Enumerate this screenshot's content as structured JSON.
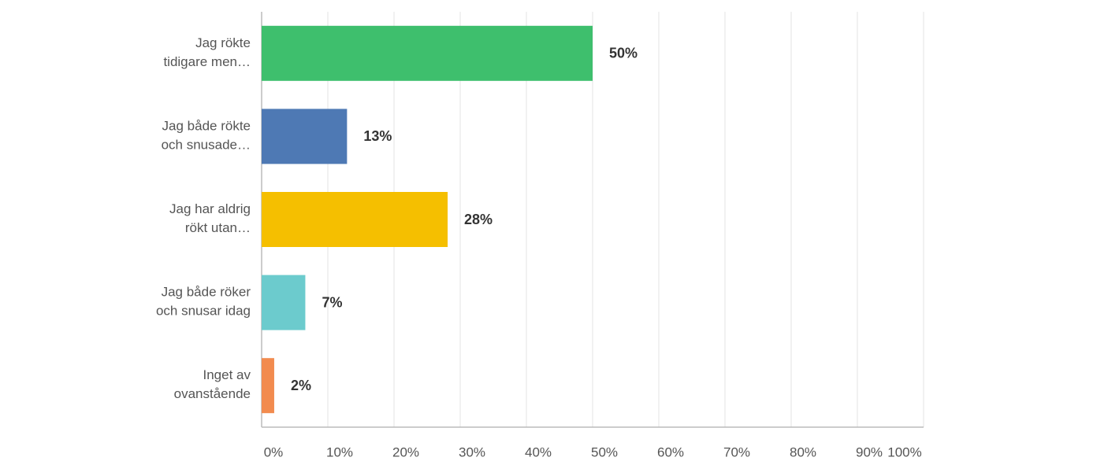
{
  "chart_data": {
    "type": "bar",
    "orientation": "horizontal",
    "categories": [
      [
        "Jag rökte",
        "tidigare men…"
      ],
      [
        "Jag både rökte",
        "och snusade…"
      ],
      [
        "Jag har aldrig",
        "rökt utan…"
      ],
      [
        "Jag både röker",
        "och snusar idag"
      ],
      [
        "Inget av",
        "ovanstående"
      ]
    ],
    "values": [
      50,
      12.9,
      28.1,
      6.6,
      1.9
    ],
    "value_labels": [
      "50%",
      "13%",
      "28%",
      "7%",
      "2%"
    ],
    "colors": [
      "#3ebf6d",
      "#4e79b4",
      "#f5bf00",
      "#6ccbcd",
      "#f28b4f"
    ],
    "xlim": [
      0,
      100
    ],
    "xticks": [
      {
        "value": 0,
        "label": "0%"
      },
      {
        "value": 10,
        "label": "10%"
      },
      {
        "value": 20,
        "label": "20%"
      },
      {
        "value": 30,
        "label": "30%"
      },
      {
        "value": 40,
        "label": "40%"
      },
      {
        "value": 50,
        "label": "50%"
      },
      {
        "value": 60,
        "label": "60%"
      },
      {
        "value": 70,
        "label": "70%"
      },
      {
        "value": 80,
        "label": "80%"
      },
      {
        "value": 90,
        "label": "90%"
      },
      {
        "value": 100,
        "label": "100%"
      }
    ],
    "grid": true
  }
}
